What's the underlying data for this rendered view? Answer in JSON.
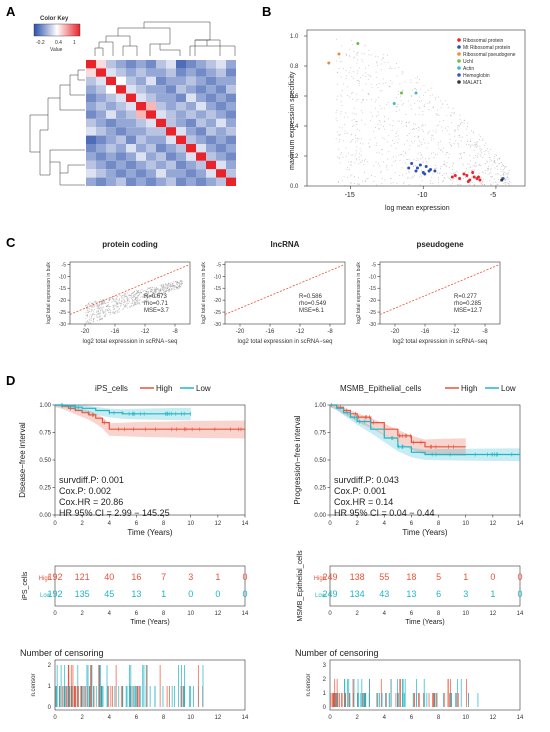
{
  "panels": {
    "A": "A",
    "B": "B",
    "C": "C",
    "D": "D"
  },
  "panelA": {
    "color_key_title": "Color Key",
    "color_key_ticks": [
      "-0.2",
      "0.4",
      "1"
    ],
    "color_key_label": "Value"
  },
  "chart_data": [
    {
      "type": "heatmap",
      "panel": "A",
      "note": "Correlation heatmap of 15 cell types; diagonal = 1",
      "size": 15,
      "values": [
        [
          1,
          0.5,
          0.2,
          0.1,
          0.0,
          0.1,
          0.0,
          0.2,
          0.3,
          -0.1,
          0.0,
          0.1,
          0.2,
          0.3,
          0.1
        ],
        [
          0.5,
          1,
          0.3,
          0.2,
          0.1,
          0.2,
          0.1,
          0.1,
          0.2,
          0.0,
          0.1,
          0.0,
          0.1,
          0.2,
          0.0
        ],
        [
          0.2,
          0.3,
          1,
          0.4,
          0.2,
          0.1,
          0.3,
          0.0,
          0.1,
          0.1,
          0.2,
          0.1,
          0.0,
          0.1,
          0.1
        ],
        [
          0.1,
          0.2,
          0.4,
          1,
          0.3,
          0.2,
          0.1,
          0.1,
          0.0,
          0.2,
          0.1,
          0.0,
          0.1,
          0.0,
          0.2
        ],
        [
          0.0,
          0.1,
          0.2,
          0.3,
          1,
          0.3,
          0.2,
          0.1,
          0.1,
          0.0,
          0.3,
          0.1,
          0.0,
          0.1,
          0.0
        ],
        [
          0.1,
          0.2,
          0.1,
          0.2,
          0.3,
          1,
          0.6,
          0.2,
          0.1,
          0.2,
          0.1,
          0.3,
          0.1,
          0.0,
          0.1
        ],
        [
          0.0,
          0.1,
          0.3,
          0.1,
          0.2,
          0.6,
          1,
          0.3,
          0.2,
          0.1,
          0.2,
          0.1,
          0.2,
          0.1,
          0.0
        ],
        [
          0.2,
          0.1,
          0.0,
          0.1,
          0.1,
          0.2,
          0.3,
          1,
          0.2,
          0.1,
          0.0,
          0.2,
          0.1,
          0.3,
          0.1
        ],
        [
          0.3,
          0.2,
          0.1,
          0.0,
          0.1,
          0.1,
          0.2,
          0.2,
          1,
          0.3,
          0.1,
          0.0,
          0.2,
          0.1,
          0.2
        ],
        [
          -0.1,
          0.0,
          0.1,
          0.2,
          0.0,
          0.2,
          0.1,
          0.1,
          0.3,
          1,
          0.2,
          0.1,
          0.0,
          0.1,
          0.0
        ],
        [
          0.0,
          0.1,
          0.2,
          0.1,
          0.3,
          0.1,
          0.2,
          0.0,
          0.1,
          0.2,
          1,
          0.3,
          0.1,
          0.0,
          0.1
        ],
        [
          0.1,
          0.0,
          0.1,
          0.0,
          0.1,
          0.3,
          0.1,
          0.2,
          0.0,
          0.1,
          0.3,
          1,
          0.2,
          0.1,
          0.0
        ],
        [
          0.2,
          0.1,
          0.0,
          0.1,
          0.0,
          0.1,
          0.2,
          0.1,
          0.2,
          0.0,
          0.1,
          0.2,
          1,
          0.3,
          0.1
        ],
        [
          0.3,
          0.2,
          0.1,
          0.0,
          0.1,
          0.0,
          0.1,
          0.3,
          0.1,
          0.1,
          0.0,
          0.1,
          0.3,
          1,
          0.2
        ],
        [
          0.1,
          0.0,
          0.1,
          0.2,
          0.0,
          0.1,
          0.0,
          0.1,
          0.2,
          0.0,
          0.1,
          0.0,
          0.1,
          0.2,
          1
        ]
      ],
      "colorscale": {
        "low": "#2b4fa8",
        "mid": "#ffffff",
        "high": "#e8232a"
      }
    },
    {
      "type": "scatter",
      "panel": "B",
      "xlabel": "log mean expression",
      "ylabel": "maximum expression specificity",
      "xlim": [
        -18,
        -3
      ],
      "ylim": [
        0,
        1
      ],
      "x_ticks": [
        -15,
        -10,
        -5
      ],
      "y_ticks": [
        0.0,
        0.2,
        0.4,
        0.6,
        0.8,
        1.0
      ],
      "legend_position": "top-right",
      "series": [
        {
          "name": "Ribosomal protein",
          "color": "#e8232a",
          "x": [
            -8,
            -7.5,
            -7,
            -6.8,
            -6.5,
            -6.3,
            -6.1,
            -7.2,
            -6.9,
            -7.8,
            -6.6,
            -6.2
          ],
          "y": [
            0.06,
            0.05,
            0.07,
            0.04,
            0.06,
            0.05,
            0.04,
            0.08,
            0.03,
            0.07,
            0.09,
            0.06
          ]
        },
        {
          "name": "Mt Ribosomal protein",
          "color": "#2c4fb8",
          "x": [
            -11,
            -10.5,
            -10.2,
            -10,
            -9.8,
            -9.5,
            -9.2,
            -10.8,
            -9.9,
            -10.4,
            -9.6
          ],
          "y": [
            0.12,
            0.1,
            0.14,
            0.09,
            0.13,
            0.11,
            0.1,
            0.15,
            0.08,
            0.12,
            0.1
          ]
        },
        {
          "name": "Ribosomal pseudogene",
          "color": "#f08a3c",
          "x": [
            -16.5,
            -15.8
          ],
          "y": [
            0.82,
            0.88
          ]
        },
        {
          "name": "Uchl",
          "color": "#6abe45",
          "x": [
            -14.5,
            -11.5
          ],
          "y": [
            0.95,
            0.62
          ]
        },
        {
          "name": "Actin",
          "color": "#44bbbb",
          "x": [
            -12,
            -10.5
          ],
          "y": [
            0.55,
            0.62
          ]
        },
        {
          "name": "Hemoglobin",
          "color": "#3b56c4",
          "x": [
            -4.5
          ],
          "y": [
            0.05
          ]
        },
        {
          "name": "MALAT1",
          "color": "#333333",
          "x": [
            -4.6
          ],
          "y": [
            0.04
          ]
        }
      ]
    },
    {
      "type": "scatter",
      "panel": "C",
      "title": "protein coding",
      "xlabel": "log2 total expression in scRNA−seq",
      "ylabel": "log2 total expression in bulk",
      "xlim": [
        -22,
        -6
      ],
      "ylim": [
        -30,
        -4
      ],
      "x_ticks": [
        -20,
        -16,
        -12,
        -8
      ],
      "y_ticks": [
        -30,
        -25,
        -20,
        -15,
        -10,
        -5
      ],
      "stats": {
        "R": "R=0.673",
        "rho": "rho=0.71",
        "MSE": "MSE=3.7"
      }
    },
    {
      "type": "scatter",
      "panel": "C",
      "title": "lncRNA",
      "xlabel": "log2 total expression in scRNA−seq",
      "ylabel": "log2 total expression in bulk",
      "xlim": [
        -22,
        -6
      ],
      "ylim": [
        -30,
        -4
      ],
      "x_ticks": [
        -20,
        -16,
        -12,
        -8
      ],
      "y_ticks": [
        -30,
        -25,
        -20,
        -15,
        -10,
        -5
      ],
      "stats": {
        "R": "R=0.586",
        "rho": "rho=0.549",
        "MSE": "MSE=6.1"
      }
    },
    {
      "type": "scatter",
      "panel": "C",
      "title": "pseudogene",
      "xlabel": "log2 total expression in scRNA−seq",
      "ylabel": "log2 total expression in bulk",
      "xlim": [
        -22,
        -6
      ],
      "ylim": [
        -30,
        -4
      ],
      "x_ticks": [
        -20,
        -16,
        -12,
        -8
      ],
      "y_ticks": [
        -30,
        -25,
        -20,
        -15,
        -10,
        -5
      ],
      "stats": {
        "R": "R=0.277",
        "rho": "rho=0.285",
        "MSE": "MSE=12.7"
      }
    },
    {
      "type": "line",
      "panel": "D",
      "subtype": "kaplan-meier",
      "legend_title": "iPS_cells",
      "ylabel": "Disease−free interval",
      "xlabel": "Time (Years)",
      "xlim": [
        0,
        14
      ],
      "ylim": [
        0,
        1
      ],
      "x_ticks": [
        0,
        2,
        4,
        6,
        8,
        10,
        12,
        14
      ],
      "y_ticks": [
        "0.00",
        "0.25",
        "0.50",
        "0.75",
        "1.00"
      ],
      "series": [
        {
          "name": "High",
          "color": "#e8533a",
          "x": [
            0,
            0.5,
            1,
            1.5,
            2,
            2.5,
            3,
            3.5,
            4,
            5,
            6,
            8,
            10,
            14
          ],
          "y": [
            1,
            0.99,
            0.97,
            0.95,
            0.93,
            0.91,
            0.88,
            0.84,
            0.78,
            0.78,
            0.78,
            0.78,
            0.78,
            0.78
          ]
        },
        {
          "name": "Low",
          "color": "#1fb5c8",
          "x": [
            0,
            0.5,
            1,
            1.5,
            2,
            3,
            4,
            5,
            6,
            8,
            10
          ],
          "y": [
            1,
            1,
            0.99,
            0.98,
            0.97,
            0.95,
            0.93,
            0.92,
            0.92,
            0.92,
            0.92
          ]
        }
      ],
      "stats": [
        "survdiff.P: 0.001",
        "Cox.P: 0.002",
        "Cox.HR = 20.86",
        "HR 95% CI = 2.99 − 145.25"
      ],
      "risk_table": {
        "ylabel": "iPS_cells",
        "rows": [
          {
            "name": "High",
            "values": [
              "192",
              "121",
              "40",
              "16",
              "7",
              "3",
              "1",
              "0"
            ]
          },
          {
            "name": "Low",
            "values": [
              "192",
              "135",
              "45",
              "13",
              "1",
              "0",
              "0",
              "0"
            ]
          }
        ]
      },
      "censor": {
        "title": "Number of censoring",
        "ylabel": "n.censor",
        "y_ticks": [
          "0",
          "1",
          "2"
        ]
      }
    },
    {
      "type": "line",
      "panel": "D",
      "subtype": "kaplan-meier",
      "legend_title": "MSMB_Epithelial_cells",
      "ylabel": "Progression−free interval",
      "xlabel": "Time (Years)",
      "xlim": [
        0,
        14
      ],
      "ylim": [
        0,
        1
      ],
      "x_ticks": [
        0,
        2,
        4,
        6,
        8,
        10,
        12,
        14
      ],
      "y_ticks": [
        "0.00",
        "0.25",
        "0.50",
        "0.75",
        "1.00"
      ],
      "series": [
        {
          "name": "High",
          "color": "#e8533a",
          "x": [
            0,
            0.5,
            1,
            1.5,
            2,
            3,
            4,
            5,
            6,
            7,
            8,
            10
          ],
          "y": [
            1,
            0.98,
            0.95,
            0.92,
            0.89,
            0.84,
            0.78,
            0.72,
            0.66,
            0.62,
            0.62,
            0.62
          ]
        },
        {
          "name": "Low",
          "color": "#1fb5c8",
          "x": [
            0,
            0.5,
            1,
            1.5,
            2,
            3,
            4,
            5,
            6,
            7,
            8,
            10,
            14
          ],
          "y": [
            1,
            0.97,
            0.93,
            0.89,
            0.85,
            0.78,
            0.7,
            0.62,
            0.57,
            0.55,
            0.55,
            0.55,
            0.55
          ]
        }
      ],
      "stats": [
        "survdiff.P: 0.043",
        "Cox.P: 0.001",
        "Cox.HR = 0.14",
        "HR 95% CI = 0.04 − 0.44"
      ],
      "risk_table": {
        "ylabel": "MSMB_Epithelial_cells",
        "rows": [
          {
            "name": "High",
            "values": [
              "249",
              "138",
              "55",
              "18",
              "5",
              "1",
              "0",
              "0"
            ]
          },
          {
            "name": "Low",
            "values": [
              "249",
              "134",
              "43",
              "13",
              "6",
              "3",
              "1",
              "0"
            ]
          }
        ]
      },
      "censor": {
        "title": "Number of censoring",
        "ylabel": "n.censor",
        "y_ticks": [
          "0",
          "1",
          "2",
          "3"
        ]
      }
    }
  ]
}
